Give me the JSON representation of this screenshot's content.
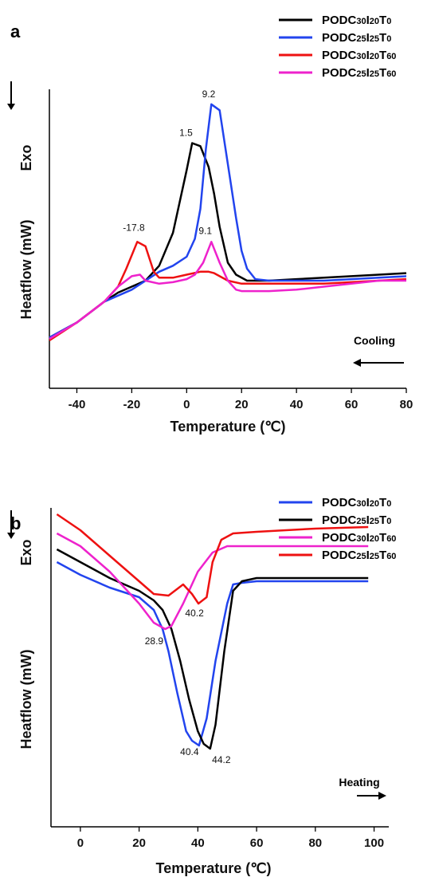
{
  "chart_data": [
    {
      "type": "line",
      "panel_label": "a",
      "xlabel": "Temperature (℃)",
      "ylabel": "Heatflow (mW)",
      "exo_label": "Exo",
      "direction_label": "Cooling",
      "direction": "left",
      "xlim": [
        -50,
        80
      ],
      "ylim": [
        0,
        100
      ],
      "x_ticks": [
        -40,
        -20,
        0,
        20,
        40,
        60,
        80
      ],
      "y_ticks_shown": false,
      "grid": false,
      "legend_position": "top-right",
      "series": [
        {
          "name": "PODC30I20T0",
          "base": "PODC",
          "subs": [
            "30",
            "I",
            "20",
            "T",
            "0"
          ],
          "color": "#000000",
          "x": [
            -50,
            -40,
            -30,
            -25,
            -20,
            -15,
            -10,
            -5,
            0,
            2,
            5,
            8,
            10,
            12,
            15,
            18,
            22,
            25,
            30,
            40,
            50,
            60,
            70,
            80
          ],
          "y": [
            17,
            22,
            29,
            32,
            34,
            36,
            41,
            52,
            73,
            82,
            81,
            74,
            65,
            54,
            42,
            38,
            36,
            36,
            36,
            36.5,
            37,
            37.5,
            38,
            38.5
          ]
        },
        {
          "name": "PODC25I25T0",
          "base": "PODC",
          "subs": [
            "25",
            "I",
            "25",
            "T",
            "0"
          ],
          "color": "#2244ee",
          "x": [
            -50,
            -40,
            -30,
            -20,
            -10,
            -5,
            0,
            3,
            5,
            7,
            9,
            12,
            15,
            18,
            20,
            22,
            25,
            30,
            40,
            50,
            60,
            70,
            80
          ],
          "y": [
            17,
            22,
            29,
            33,
            39,
            41,
            44,
            50,
            60,
            80,
            95,
            93,
            75,
            57,
            46,
            40,
            36.5,
            36,
            36,
            36,
            36.5,
            37,
            37.5
          ]
        },
        {
          "name": "PODC30I20T60",
          "base": "PODC",
          "subs": [
            "30",
            "I",
            "20",
            "T",
            "60"
          ],
          "color": "#ee1111",
          "x": [
            -50,
            -40,
            -30,
            -25,
            -22,
            -18,
            -15,
            -12,
            -10,
            -5,
            0,
            5,
            8,
            10,
            15,
            20,
            30,
            40,
            50,
            60,
            70,
            80
          ],
          "y": [
            16,
            22,
            29,
            34,
            40,
            49,
            47.5,
            39,
            37,
            37,
            38,
            39,
            39,
            38.5,
            36,
            35,
            35,
            35,
            35,
            35.5,
            36,
            36.5
          ]
        },
        {
          "name": "PODC25I25T60",
          "base": "PODC",
          "subs": [
            "25",
            "I",
            "25",
            "T",
            "60"
          ],
          "color": "#ee22cc",
          "x": [
            -50,
            -40,
            -30,
            -25,
            -20,
            -17,
            -15,
            -10,
            -5,
            0,
            3,
            6,
            9,
            12,
            15,
            18,
            20,
            25,
            30,
            40,
            50,
            60,
            70,
            80
          ],
          "y": [
            16.5,
            22,
            29,
            34,
            37.5,
            38,
            36,
            35,
            35.5,
            36.5,
            38,
            42,
            49,
            42,
            36,
            33,
            32.5,
            32.5,
            32.5,
            33,
            34,
            35,
            36,
            36
          ]
        }
      ],
      "data_labels": [
        {
          "text": "-17.8",
          "x": -17.8,
          "y": 49,
          "color": "#000000"
        },
        {
          "text": "1.5",
          "x": 1.5,
          "y": 82,
          "color": "#000000"
        },
        {
          "text": "9.2",
          "x": 9.2,
          "y": 95,
          "color": "#000000"
        },
        {
          "text": "9.1",
          "x": 9.1,
          "y": 49,
          "color": "#000000"
        }
      ]
    },
    {
      "type": "line",
      "panel_label": "b",
      "xlabel": "Temperature (℃)",
      "ylabel": "Heatflow (mW)",
      "exo_label": "Exo",
      "direction_label": "Heating",
      "direction": "right",
      "xlim": [
        -10,
        105
      ],
      "ylim": [
        0,
        100
      ],
      "x_ticks": [
        0,
        20,
        40,
        60,
        80,
        100
      ],
      "y_ticks_shown": false,
      "grid": false,
      "legend_position": "top-right",
      "series": [
        {
          "name": "PODC30I20T0",
          "base": "PODC",
          "subs": [
            "30",
            "I",
            "20",
            "T",
            "0"
          ],
          "color": "#2244ee",
          "x": [
            -8,
            0,
            10,
            20,
            25,
            28,
            30,
            33,
            36,
            38,
            40.4,
            43,
            46,
            50,
            52,
            55,
            60,
            70,
            80,
            98
          ],
          "y": [
            83,
            79,
            75,
            72,
            68,
            62,
            55,
            42,
            30,
            27,
            25.5,
            34,
            52,
            70,
            76,
            76.5,
            77,
            77,
            77,
            77
          ]
        },
        {
          "name": "PODC25I25T0",
          "base": "PODC",
          "subs": [
            "25",
            "I",
            "25",
            "T",
            "0"
          ],
          "color": "#000000",
          "x": [
            -8,
            0,
            10,
            20,
            25,
            28,
            31,
            34,
            37,
            40,
            42,
            44.2,
            46,
            49,
            52,
            55,
            60,
            70,
            80,
            98
          ],
          "y": [
            87,
            83,
            78,
            74,
            71,
            68,
            62,
            52,
            40,
            30,
            26,
            24.5,
            32,
            55,
            74,
            77,
            78,
            78,
            78,
            78
          ]
        },
        {
          "name": "PODC30I20T60",
          "base": "PODC",
          "subs": [
            "30",
            "I",
            "20",
            "T",
            "60"
          ],
          "color": "#ee22cc",
          "x": [
            -8,
            0,
            10,
            20,
            25,
            28.9,
            31,
            35,
            40,
            45,
            50,
            60,
            70,
            80,
            98
          ],
          "y": [
            92,
            88,
            80,
            70,
            64,
            62,
            63,
            70,
            80,
            86,
            88,
            88,
            88,
            88,
            88
          ]
        },
        {
          "name": "PODC25I25T60",
          "base": "PODC",
          "subs": [
            "25",
            "I",
            "25",
            "T",
            "60"
          ],
          "color": "#ee1111",
          "x": [
            -8,
            0,
            10,
            20,
            25,
            30,
            35,
            38,
            40.2,
            43,
            45,
            48,
            52,
            60,
            70,
            80,
            98
          ],
          "y": [
            98,
            93,
            85,
            77,
            73,
            72.5,
            76,
            73,
            70,
            72,
            83,
            90,
            92,
            92.5,
            93,
            93.5,
            94
          ]
        }
      ],
      "data_labels": [
        {
          "text": "28.9",
          "x": 28.9,
          "y": 62,
          "color": "#000000"
        },
        {
          "text": "40.2",
          "x": 40.2,
          "y": 70,
          "color": "#000000"
        },
        {
          "text": "40.4",
          "x": 40.4,
          "y": 25.5,
          "color": "#000000"
        },
        {
          "text": "44.2",
          "x": 44.2,
          "y": 24.5,
          "color": "#000000"
        }
      ]
    }
  ]
}
